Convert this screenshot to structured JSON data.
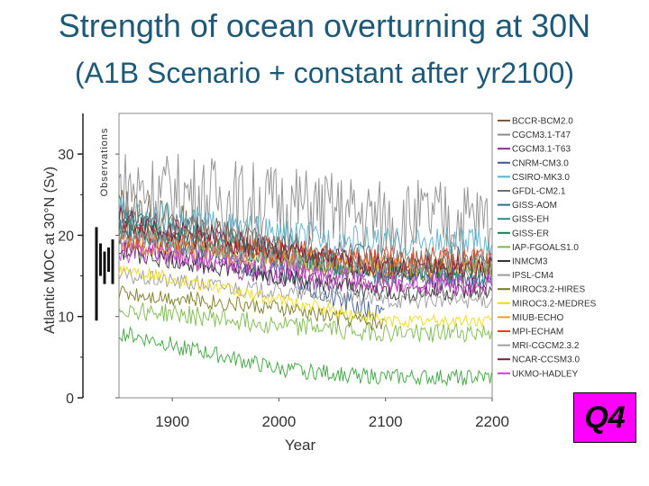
{
  "slide": {
    "title": "Strength of ocean overturning at 30N",
    "subtitle": "(A1B Scenario + constant after yr2100)",
    "badge": "Q4"
  },
  "chart_data": {
    "type": "line",
    "xlabel": "Year",
    "ylabel": "Atlantic MOC at  30°N (Sv)",
    "xlim": [
      1850,
      2200
    ],
    "ylim": [
      0,
      35
    ],
    "xticks": [
      1900,
      2000,
      2100,
      2200
    ],
    "yticks": [
      0,
      10,
      20,
      30
    ],
    "observations_label": "Observations",
    "observations": [
      {
        "low": 9.5,
        "high": 21
      },
      {
        "low": 15,
        "high": 19
      },
      {
        "low": 14,
        "high": 18
      },
      {
        "low": 15.5,
        "high": 18.5
      },
      {
        "low": 14,
        "high": 19.5
      }
    ],
    "series": [
      {
        "name": "BCCR-BCM2.0",
        "color": "#7a5c3a",
        "start": 24,
        "mid": 18,
        "end": 16,
        "noise": 2.2,
        "end_year": 2200
      },
      {
        "name": "CGCM3.1-T47",
        "color": "#8c8c8c",
        "start": 26,
        "mid": 24,
        "end": 22,
        "noise": 5,
        "end_year": 2200
      },
      {
        "name": "CGCM3.1-T63",
        "color": "#8e2a8e",
        "start": 19,
        "mid": 15,
        "end": 14,
        "noise": 1.5,
        "end_year": 2200
      },
      {
        "name": "CNRM-CM3.0",
        "color": "#3d5c8a",
        "start": 21,
        "mid": 15,
        "end": 10,
        "noise": 1.5,
        "end_year": 2100
      },
      {
        "name": "CSIRO-MK3.0",
        "color": "#5ab0c8",
        "start": 23,
        "mid": 20,
        "end": 19,
        "noise": 2,
        "end_year": 2200
      },
      {
        "name": "GFDL-CM2.1",
        "color": "#6e6e6e",
        "start": 22,
        "mid": 19,
        "end": 17,
        "noise": 1.8,
        "end_year": 2200
      },
      {
        "name": "GISS-AOM",
        "color": "#2a6e8a",
        "start": 20,
        "mid": 17,
        "end": 15,
        "noise": 1.2,
        "end_year": 2200
      },
      {
        "name": "GISS-EH",
        "color": "#2a8a8a",
        "start": 22,
        "mid": 18,
        "end": 15,
        "noise": 1.5,
        "end_year": 2200
      },
      {
        "name": "GISS-ER",
        "color": "#1f7a4e",
        "start": 21,
        "mid": 17,
        "end": 16,
        "noise": 1.4,
        "end_year": 2200
      },
      {
        "name": "IAP-FGOALS1.0",
        "color": "#7ab848",
        "start": 11,
        "mid": 9,
        "end": 8,
        "noise": 1.2,
        "end_year": 2200
      },
      {
        "name": "INMCM3",
        "color": "#333333",
        "start": 18,
        "mid": 15,
        "end": 13,
        "noise": 1.2,
        "end_year": 2200
      },
      {
        "name": "IPSL-CM4",
        "color": "#9a9a9a",
        "start": 15,
        "mid": 13,
        "end": 12,
        "noise": 1,
        "end_year": 2200
      },
      {
        "name": "MIROC3.2-HIRES",
        "color": "#7a7a1e",
        "start": 13,
        "mid": 11,
        "end": 9,
        "noise": 1,
        "end_year": 2100
      },
      {
        "name": "MIROC3.2-MEDRES",
        "color": "#f0d814",
        "start": 16,
        "mid": 12,
        "end": 9.5,
        "noise": 0.8,
        "end_year": 2200
      },
      {
        "name": "MIUB-ECHO",
        "color": "#e8a020",
        "start": 19,
        "mid": 17,
        "end": 16,
        "noise": 1.3,
        "end_year": 2200
      },
      {
        "name": "MPI-ECHAM",
        "color": "#e0421e",
        "start": 20,
        "mid": 18,
        "end": 17,
        "noise": 1.6,
        "end_year": 2200
      },
      {
        "name": "MRI-CGCM2.3.2",
        "color": "#a0a0a0",
        "start": 20,
        "mid": 17,
        "end": 16,
        "noise": 1.2,
        "end_year": 2200
      },
      {
        "name": "NCAR-CCSM3.0",
        "color": "#7a1e3a",
        "start": 22,
        "mid": 18,
        "end": 16,
        "noise": 1.5,
        "end_year": 2200
      },
      {
        "name": "UKMO-HADLEY",
        "color": "#d040d0",
        "start": 18,
        "mid": 16,
        "end": 14,
        "noise": 1.3,
        "end_year": 2200
      },
      {
        "name": "",
        "color": "#3aa03a",
        "start": 8,
        "mid": 3.5,
        "end": 2.5,
        "noise": 1,
        "end_year": 2200
      }
    ]
  }
}
